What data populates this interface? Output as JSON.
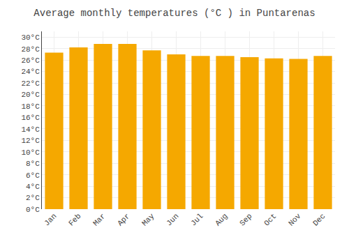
{
  "chart_data": {
    "type": "bar",
    "title": "Average monthly temperatures (°C ) in Puntarenas",
    "categories": [
      "Jan",
      "Feb",
      "Mar",
      "Apr",
      "May",
      "Jun",
      "Jul",
      "Aug",
      "Sep",
      "Oct",
      "Nov",
      "Dec"
    ],
    "values": [
      27.3,
      28.2,
      28.8,
      28.8,
      27.7,
      27.0,
      26.7,
      26.7,
      26.5,
      26.3,
      26.2,
      26.7
    ],
    "color": "#F5A800",
    "ylim": [
      0,
      31
    ],
    "yticks": [
      {
        "value": 0,
        "label": "0°C"
      },
      {
        "value": 2,
        "label": "2°C"
      },
      {
        "value": 4,
        "label": "4°C"
      },
      {
        "value": 6,
        "label": "6°C"
      },
      {
        "value": 8,
        "label": "8°C"
      },
      {
        "value": 10,
        "label": "10°C"
      },
      {
        "value": 12,
        "label": "12°C"
      },
      {
        "value": 14,
        "label": "14°C"
      },
      {
        "value": 16,
        "label": "16°C"
      },
      {
        "value": 18,
        "label": "18°C"
      },
      {
        "value": 20,
        "label": "20°C"
      },
      {
        "value": 22,
        "label": "22°C"
      },
      {
        "value": 24,
        "label": "24°C"
      },
      {
        "value": 26,
        "label": "26°C"
      },
      {
        "value": 28,
        "label": "28°C"
      },
      {
        "value": 30,
        "label": "30°C"
      }
    ],
    "grid": true
  }
}
